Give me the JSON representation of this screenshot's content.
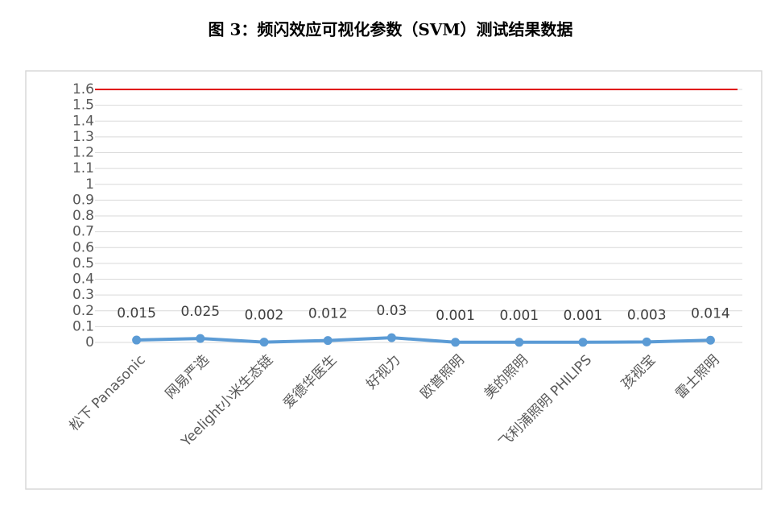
{
  "title": "图 3：频闪效应可视化参数（SVM）测试结果数据",
  "chart_data": {
    "type": "line",
    "categories": [
      "松下 Panasonic",
      "网易严选",
      "Yeelight小米生态链",
      "爱德华医生",
      "好视力",
      "欧普照明",
      "美的照明",
      "飞利浦照明 PHILIPS",
      "孩视宝",
      "雷士照明"
    ],
    "series": [
      {
        "color": "#5b9bd5",
        "values": [
          0.015,
          0.025,
          0.002,
          0.012,
          0.03,
          0.001,
          0.001,
          0.001,
          0.003,
          0.014
        ]
      }
    ],
    "data_labels": true,
    "reference_line": {
      "value": 1.6,
      "color": "#e00000"
    },
    "ylim": [
      0,
      1.6
    ],
    "yticks": [
      0,
      0.1,
      0.2,
      0.3,
      0.4,
      0.5,
      0.6,
      0.7,
      0.8,
      0.9,
      1,
      1.1,
      1.2,
      1.3,
      1.4,
      1.5,
      1.6
    ],
    "grid": true
  }
}
